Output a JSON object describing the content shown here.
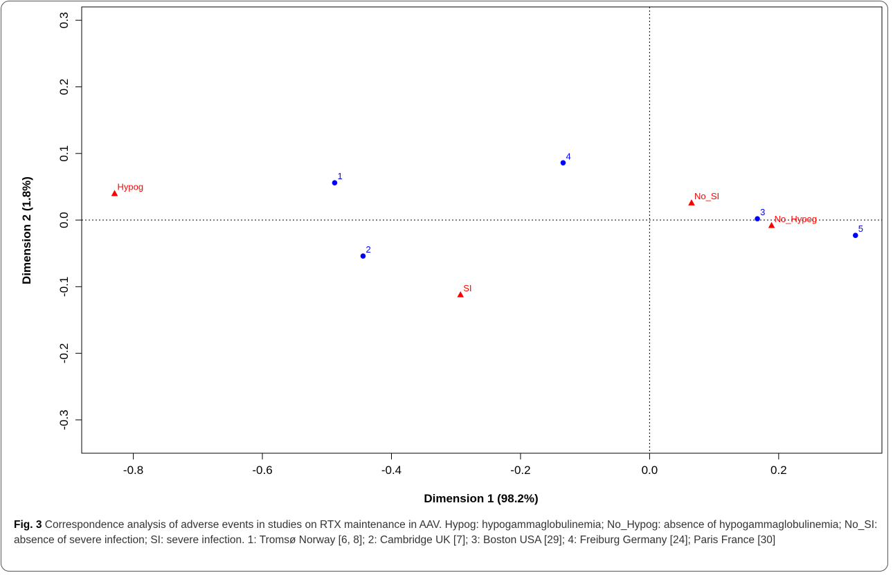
{
  "chart_data": {
    "type": "scatter",
    "xlabel": "Dimension 1 (98.2%)",
    "ylabel": "Dimension 2 (1.8%)",
    "xlim": [
      -0.88,
      0.36
    ],
    "ylim": [
      -0.35,
      0.32
    ],
    "xticks": [
      "-0.8",
      "-0.6",
      "-0.4",
      "-0.2",
      "0.0",
      "0.2"
    ],
    "yticks": [
      "-0.3",
      "-0.2",
      "-0.1",
      "0.0",
      "0.1",
      "0.2",
      "0.3"
    ],
    "reference_lines": {
      "x": 0,
      "y": 0,
      "style": "dotted"
    },
    "grid": false,
    "series": [
      {
        "marker": "circle",
        "color": "#0000ff",
        "points": [
          {
            "label": "1",
            "x": -0.488,
            "y": 0.056
          },
          {
            "label": "2",
            "x": -0.444,
            "y": -0.054
          },
          {
            "label": "3",
            "x": 0.167,
            "y": 0.002
          },
          {
            "label": "4",
            "x": -0.134,
            "y": 0.086
          },
          {
            "label": "5",
            "x": 0.319,
            "y": -0.023
          }
        ]
      },
      {
        "marker": "triangle",
        "color": "#ff0000",
        "points": [
          {
            "label": "Hypog",
            "x": -0.829,
            "y": 0.04
          },
          {
            "label": "No_SI",
            "x": 0.065,
            "y": 0.026
          },
          {
            "label": "No_Hypog",
            "x": 0.189,
            "y": -0.008
          },
          {
            "label": "SI",
            "x": -0.293,
            "y": -0.112
          }
        ]
      }
    ]
  },
  "caption": {
    "fig_label": "Fig. 3",
    "text": " Correspondence analysis of adverse events in studies on RTX maintenance in AAV. Hypog: hypogammaglobulinemia; No_Hypog: absence of hypogammaglobulinemia; No_SI: absence of severe infection; SI: severe infection. 1: Tromsø Norway [6, 8]; 2: Cambridge UK [7]; 3: Boston USA [29]; 4: Freiburg Germany [24]; Paris France [30]"
  }
}
